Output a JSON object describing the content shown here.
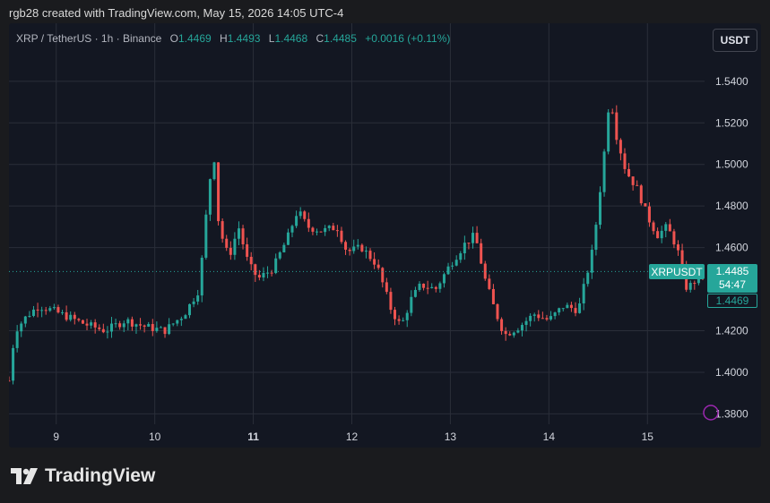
{
  "header": {
    "credit": "rgb28 created with TradingView.com, May 15, 2026 14:05 UTC-4"
  },
  "legend": {
    "symbol": "XRP / TetherUS · 1h · Binance",
    "o_label": "O",
    "o": "1.4469",
    "h_label": "H",
    "h": "1.4493",
    "l_label": "L",
    "l": "1.4468",
    "c_label": "C",
    "c": "1.4485",
    "change": "+0.0016 (+0.11%)"
  },
  "currency_button": "USDT",
  "price_tags": {
    "symbol": "XRPUSDT",
    "last": "1.4485",
    "countdown": "54:47",
    "open": "1.4469"
  },
  "colors": {
    "up": "#26a69a",
    "down": "#ef5350",
    "background": "#131722",
    "grid": "#2a2e39"
  },
  "footer": {
    "brand": "TradingView",
    "logo_icon": "tradingview-logo-icon"
  },
  "chart_data": {
    "type": "candlestick",
    "x_tick_labels": [
      "9",
      "10",
      "11",
      "12",
      "13",
      "14",
      "15"
    ],
    "bold_x_tick": "11",
    "y_tick_labels": [
      "1.5400",
      "1.5200",
      "1.5000",
      "1.4800",
      "1.4600",
      "1.4200",
      "1.4000",
      "1.3800"
    ],
    "ylim": [
      1.375,
      1.555
    ],
    "xlim": [
      8.52,
      15.58
    ],
    "last_price": 1.4485,
    "close_path": [
      [
        8.52,
        1.396
      ],
      [
        8.58,
        1.42
      ],
      [
        8.7,
        1.427
      ],
      [
        8.82,
        1.432
      ],
      [
        8.95,
        1.43
      ],
      [
        9.1,
        1.427
      ],
      [
        9.3,
        1.423
      ],
      [
        9.5,
        1.42
      ],
      [
        9.7,
        1.425
      ],
      [
        9.9,
        1.422
      ],
      [
        10.1,
        1.42
      ],
      [
        10.3,
        1.428
      ],
      [
        10.45,
        1.44
      ],
      [
        10.55,
        1.49
      ],
      [
        10.6,
        1.505
      ],
      [
        10.65,
        1.47
      ],
      [
        10.75,
        1.455
      ],
      [
        10.85,
        1.47
      ],
      [
        10.95,
        1.452
      ],
      [
        11.05,
        1.445
      ],
      [
        11.2,
        1.45
      ],
      [
        11.35,
        1.465
      ],
      [
        11.45,
        1.478
      ],
      [
        11.55,
        1.47
      ],
      [
        11.7,
        1.468
      ],
      [
        11.85,
        1.47
      ],
      [
        11.95,
        1.458
      ],
      [
        12.1,
        1.46
      ],
      [
        12.25,
        1.452
      ],
      [
        12.4,
        1.43
      ],
      [
        12.5,
        1.422
      ],
      [
        12.6,
        1.435
      ],
      [
        12.7,
        1.442
      ],
      [
        12.85,
        1.44
      ],
      [
        13.0,
        1.452
      ],
      [
        13.15,
        1.462
      ],
      [
        13.25,
        1.466
      ],
      [
        13.35,
        1.445
      ],
      [
        13.45,
        1.43
      ],
      [
        13.55,
        1.418
      ],
      [
        13.7,
        1.422
      ],
      [
        13.85,
        1.428
      ],
      [
        14.0,
        1.425
      ],
      [
        14.15,
        1.432
      ],
      [
        14.3,
        1.43
      ],
      [
        14.45,
        1.46
      ],
      [
        14.55,
        1.5
      ],
      [
        14.62,
        1.535
      ],
      [
        14.68,
        1.515
      ],
      [
        14.78,
        1.497
      ],
      [
        14.9,
        1.488
      ],
      [
        15.0,
        1.475
      ],
      [
        15.1,
        1.466
      ],
      [
        15.2,
        1.47
      ],
      [
        15.3,
        1.46
      ],
      [
        15.4,
        1.44
      ],
      [
        15.5,
        1.445
      ],
      [
        15.56,
        1.4485
      ]
    ]
  }
}
